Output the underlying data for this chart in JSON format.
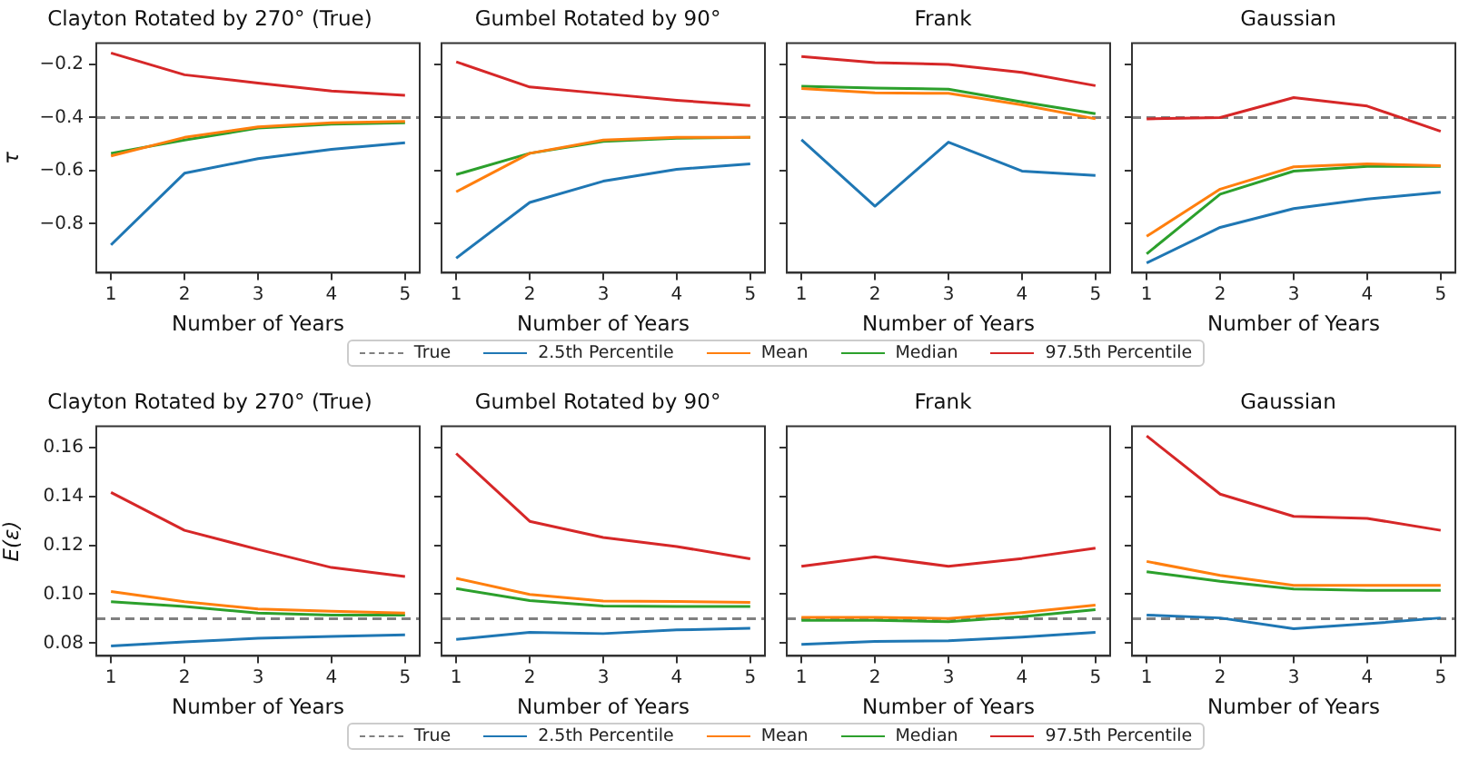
{
  "chart_data": [
    {
      "type": "line",
      "title": "Clayton Rotated by 270° (True)",
      "xlabel": "Number of Years",
      "ylabel": "τ",
      "x": [
        1,
        2,
        3,
        4,
        5
      ],
      "xlim": [
        0.8,
        5.2
      ],
      "xticks": [
        1,
        2,
        3,
        4,
        5
      ],
      "ylim": [
        -0.985,
        -0.12
      ],
      "yticks": [
        {
          "value": -0.8,
          "label": "−0.8"
        },
        {
          "value": -0.6,
          "label": "−0.6"
        },
        {
          "value": -0.4,
          "label": "−0.4"
        },
        {
          "value": -0.2,
          "label": "−0.2"
        }
      ],
      "legend": "bottom",
      "ref_lines": [
        {
          "axis": "y",
          "value": -0.4,
          "label": "True",
          "color": "#808080",
          "line_style": "dashed"
        }
      ],
      "series": [
        {
          "name": "2.5th Percentile",
          "color": "#1f77b4",
          "values": [
            -0.88,
            -0.61,
            -0.555,
            -0.52,
            -0.495
          ]
        },
        {
          "name": "Mean",
          "color": "#ff7f0e",
          "values": [
            -0.545,
            -0.475,
            -0.435,
            -0.42,
            -0.415
          ]
        },
        {
          "name": "Median",
          "color": "#2ca02c",
          "values": [
            -0.535,
            -0.485,
            -0.44,
            -0.425,
            -0.42
          ]
        },
        {
          "name": "97.5th Percentile",
          "color": "#d62728",
          "values": [
            -0.157,
            -0.239,
            -0.27,
            -0.3,
            -0.316
          ]
        }
      ]
    },
    {
      "type": "line",
      "title": "Gumbel Rotated by 90°",
      "xlabel": "Number of Years",
      "x": [
        1,
        2,
        3,
        4,
        5
      ],
      "xlim": [
        0.8,
        5.2
      ],
      "xticks": [
        1,
        2,
        3,
        4,
        5
      ],
      "ylim": [
        -0.985,
        -0.12
      ],
      "yticks": [
        -0.8,
        -0.6,
        -0.4,
        -0.2
      ],
      "tick_labels": "x",
      "ref_lines": [
        {
          "axis": "y",
          "value": -0.4,
          "color": "#808080",
          "line_style": "dashed"
        }
      ],
      "series": [
        {
          "color": "#1f77b4",
          "values": [
            -0.93,
            -0.72,
            -0.64,
            -0.595,
            -0.575
          ]
        },
        {
          "color": "#ff7f0e",
          "values": [
            -0.68,
            -0.535,
            -0.485,
            -0.475,
            -0.475
          ]
        },
        {
          "color": "#2ca02c",
          "values": [
            -0.615,
            -0.535,
            -0.49,
            -0.478,
            -0.475
          ]
        },
        {
          "color": "#d62728",
          "values": [
            -0.19,
            -0.285,
            -0.31,
            -0.335,
            -0.355
          ]
        }
      ]
    },
    {
      "type": "line",
      "title": "Frank",
      "xlabel": "Number of Years",
      "x": [
        1,
        2,
        3,
        4,
        5
      ],
      "xlim": [
        0.8,
        5.2
      ],
      "xticks": [
        1,
        2,
        3,
        4,
        5
      ],
      "ylim": [
        -0.985,
        -0.12
      ],
      "yticks": [
        -0.8,
        -0.6,
        -0.4,
        -0.2
      ],
      "tick_labels": "x",
      "ref_lines": [
        {
          "axis": "y",
          "value": -0.4,
          "color": "#808080",
          "line_style": "dashed"
        }
      ],
      "series": [
        {
          "color": "#1f77b4",
          "values": [
            -0.484,
            -0.734,
            -0.493,
            -0.602,
            -0.618
          ]
        },
        {
          "color": "#ff7f0e",
          "values": [
            -0.291,
            -0.307,
            -0.309,
            -0.352,
            -0.405
          ]
        },
        {
          "color": "#2ca02c",
          "values": [
            -0.282,
            -0.289,
            -0.293,
            -0.341,
            -0.386
          ]
        },
        {
          "color": "#d62728",
          "values": [
            -0.17,
            -0.193,
            -0.2,
            -0.23,
            -0.28
          ]
        }
      ]
    },
    {
      "type": "line",
      "title": "Gaussian",
      "xlabel": "Number of Years",
      "x": [
        1,
        2,
        3,
        4,
        5
      ],
      "xlim": [
        0.8,
        5.2
      ],
      "xticks": [
        1,
        2,
        3,
        4,
        5
      ],
      "ylim": [
        -0.985,
        -0.12
      ],
      "yticks": [
        -0.8,
        -0.6,
        -0.4,
        -0.2
      ],
      "tick_labels": "x",
      "ref_lines": [
        {
          "axis": "y",
          "value": -0.4,
          "color": "#808080",
          "line_style": "dashed"
        }
      ],
      "series": [
        {
          "color": "#1f77b4",
          "values": [
            -0.948,
            -0.814,
            -0.743,
            -0.707,
            -0.682
          ]
        },
        {
          "color": "#ff7f0e",
          "values": [
            -0.848,
            -0.67,
            -0.586,
            -0.575,
            -0.582
          ]
        },
        {
          "color": "#2ca02c",
          "values": [
            -0.914,
            -0.689,
            -0.602,
            -0.584,
            -0.584
          ]
        },
        {
          "color": "#d62728",
          "values": [
            -0.405,
            -0.4,
            -0.325,
            -0.357,
            -0.452
          ]
        }
      ]
    },
    {
      "type": "line",
      "title": "Clayton Rotated by 270° (True)",
      "xlabel": "Number of Years",
      "ylabel": "E(ε)",
      "x": [
        1,
        2,
        3,
        4,
        5
      ],
      "xlim": [
        0.8,
        5.2
      ],
      "xticks": [
        1,
        2,
        3,
        4,
        5
      ],
      "ylim": [
        0.0748,
        0.1686
      ],
      "yticks": [
        0.08,
        {
          "value": 0.1,
          "label": "0.10"
        },
        0.12,
        0.14,
        0.16
      ],
      "legend": "bottom",
      "ref_lines": [
        {
          "axis": "y",
          "value": 0.09,
          "label": "True",
          "color": "#808080",
          "line_style": "dashed"
        }
      ],
      "series": [
        {
          "name": "2.5th Percentile",
          "color": "#1f77b4",
          "values": [
            0.0788,
            0.0805,
            0.082,
            0.0827,
            0.0834
          ]
        },
        {
          "name": "Mean",
          "color": "#ff7f0e",
          "values": [
            0.1011,
            0.0969,
            0.094,
            0.093,
            0.0923
          ]
        },
        {
          "name": "Median",
          "color": "#2ca02c",
          "values": [
            0.0969,
            0.095,
            0.0923,
            0.0915,
            0.0915
          ]
        },
        {
          "name": "97.5th Percentile",
          "color": "#d62728",
          "values": [
            0.1416,
            0.1261,
            0.1183,
            0.1109,
            0.1072
          ]
        }
      ]
    },
    {
      "type": "line",
      "title": "Gumbel Rotated by 90°",
      "xlabel": "Number of Years",
      "x": [
        1,
        2,
        3,
        4,
        5
      ],
      "xlim": [
        0.8,
        5.2
      ],
      "xticks": [
        1,
        2,
        3,
        4,
        5
      ],
      "ylim": [
        0.0748,
        0.1686
      ],
      "yticks": [
        0.08,
        0.1,
        0.12,
        0.14,
        0.16
      ],
      "tick_labels": "x",
      "ref_lines": [
        {
          "axis": "y",
          "value": 0.09,
          "color": "#808080",
          "line_style": "dashed"
        }
      ],
      "series": [
        {
          "color": "#1f77b4",
          "values": [
            0.0815,
            0.0844,
            0.0839,
            0.0854,
            0.0861
          ]
        },
        {
          "color": "#ff7f0e",
          "values": [
            0.1065,
            0.0999,
            0.0972,
            0.097,
            0.0967
          ]
        },
        {
          "color": "#2ca02c",
          "values": [
            0.1023,
            0.0974,
            0.0952,
            0.095,
            0.095
          ]
        },
        {
          "color": "#d62728",
          "values": [
            0.1575,
            0.1298,
            0.1232,
            0.1195,
            0.1145
          ]
        }
      ]
    },
    {
      "type": "line",
      "title": "Frank",
      "xlabel": "Number of Years",
      "x": [
        1,
        2,
        3,
        4,
        5
      ],
      "xlim": [
        0.8,
        5.2
      ],
      "xticks": [
        1,
        2,
        3,
        4,
        5
      ],
      "ylim": [
        0.0748,
        0.1686
      ],
      "yticks": [
        0.08,
        0.1,
        0.12,
        0.14,
        0.16
      ],
      "tick_labels": "x",
      "ref_lines": [
        {
          "axis": "y",
          "value": 0.09,
          "color": "#808080",
          "line_style": "dashed"
        }
      ],
      "series": [
        {
          "color": "#1f77b4",
          "values": [
            0.0795,
            0.0807,
            0.081,
            0.0825,
            0.0844
          ]
        },
        {
          "color": "#ff7f0e",
          "values": [
            0.0905,
            0.0905,
            0.0901,
            0.0925,
            0.0955
          ]
        },
        {
          "color": "#2ca02c",
          "values": [
            0.0893,
            0.0893,
            0.0888,
            0.0908,
            0.0937
          ]
        },
        {
          "color": "#d62728",
          "values": [
            0.1114,
            0.1153,
            0.1114,
            0.1146,
            0.1188
          ]
        }
      ]
    },
    {
      "type": "line",
      "title": "Gaussian",
      "xlabel": "Number of Years",
      "x": [
        1,
        2,
        3,
        4,
        5
      ],
      "xlim": [
        0.8,
        5.2
      ],
      "xticks": [
        1,
        2,
        3,
        4,
        5
      ],
      "ylim": [
        0.0748,
        0.1686
      ],
      "yticks": [
        0.08,
        0.1,
        0.12,
        0.14,
        0.16
      ],
      "tick_labels": "x",
      "ref_lines": [
        {
          "axis": "y",
          "value": 0.09,
          "color": "#808080",
          "line_style": "dashed"
        }
      ],
      "series": [
        {
          "color": "#1f77b4",
          "values": [
            0.0915,
            0.0903,
            0.0859,
            0.0879,
            0.0903
          ]
        },
        {
          "color": "#ff7f0e",
          "values": [
            0.1134,
            0.1077,
            0.1036,
            0.1036,
            0.1036
          ]
        },
        {
          "color": "#2ca02c",
          "values": [
            0.1092,
            0.1053,
            0.1021,
            0.1016,
            0.1016
          ]
        },
        {
          "color": "#d62728",
          "values": [
            0.1647,
            0.1409,
            0.1318,
            0.131,
            0.1261
          ]
        }
      ]
    }
  ]
}
